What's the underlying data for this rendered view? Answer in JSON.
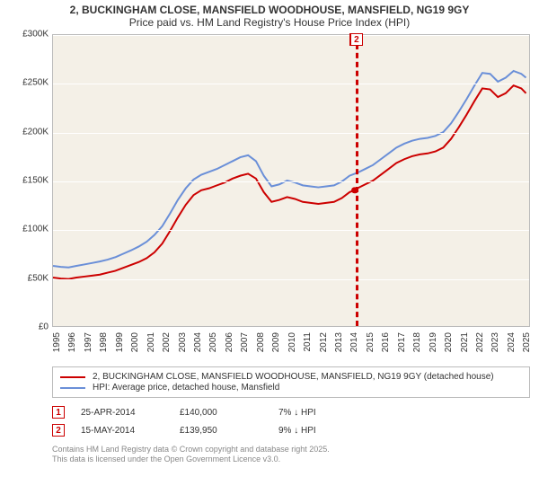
{
  "title": {
    "line1": "2, BUCKINGHAM CLOSE, MANSFIELD WOODHOUSE, MANSFIELD, NG19 9GY",
    "line2": "Price paid vs. HM Land Registry's House Price Index (HPI)"
  },
  "chart": {
    "type": "line",
    "background_color": "#f4f0e7",
    "grid_color": "#ffffff",
    "border_color": "#bbbbbb",
    "ylim": [
      0,
      300000
    ],
    "ytick_step": 50000,
    "y_ticks": [
      "£0",
      "£50K",
      "£100K",
      "£150K",
      "£200K",
      "£250K",
      "£300K"
    ],
    "xlim": [
      1995,
      2025.5
    ],
    "x_years": [
      1995,
      1996,
      1997,
      1998,
      1999,
      2000,
      2001,
      2002,
      2003,
      2004,
      2005,
      2006,
      2007,
      2008,
      2009,
      2010,
      2011,
      2012,
      2013,
      2014,
      2015,
      2016,
      2017,
      2018,
      2019,
      2020,
      2021,
      2022,
      2023,
      2024,
      2025
    ],
    "series": [
      {
        "name": "property",
        "label": "2, BUCKINGHAM CLOSE, MANSFIELD WOODHOUSE, MANSFIELD, NG19 9GY (detached house)",
        "color": "#cc0000",
        "line_width": 2,
        "points": [
          [
            1995.0,
            50000
          ],
          [
            1995.5,
            49000
          ],
          [
            1996.0,
            48500
          ],
          [
            1996.5,
            50000
          ],
          [
            1997.0,
            51000
          ],
          [
            1997.5,
            52000
          ],
          [
            1998.0,
            53000
          ],
          [
            1998.5,
            55000
          ],
          [
            1999.0,
            57000
          ],
          [
            1999.5,
            60000
          ],
          [
            2000.0,
            63000
          ],
          [
            2000.5,
            66000
          ],
          [
            2001.0,
            70000
          ],
          [
            2001.5,
            76000
          ],
          [
            2002.0,
            85000
          ],
          [
            2002.5,
            98000
          ],
          [
            2003.0,
            112000
          ],
          [
            2003.5,
            125000
          ],
          [
            2004.0,
            135000
          ],
          [
            2004.5,
            140000
          ],
          [
            2005.0,
            142000
          ],
          [
            2005.5,
            145000
          ],
          [
            2006.0,
            148000
          ],
          [
            2006.5,
            152000
          ],
          [
            2007.0,
            155000
          ],
          [
            2007.5,
            157000
          ],
          [
            2008.0,
            152000
          ],
          [
            2008.5,
            138000
          ],
          [
            2009.0,
            128000
          ],
          [
            2009.5,
            130000
          ],
          [
            2010.0,
            133000
          ],
          [
            2010.5,
            131000
          ],
          [
            2011.0,
            128000
          ],
          [
            2011.5,
            127000
          ],
          [
            2012.0,
            126000
          ],
          [
            2012.5,
            127000
          ],
          [
            2013.0,
            128000
          ],
          [
            2013.5,
            132000
          ],
          [
            2014.0,
            138000
          ],
          [
            2014.3,
            140000
          ],
          [
            2014.5,
            142000
          ],
          [
            2015.0,
            146000
          ],
          [
            2015.5,
            150000
          ],
          [
            2016.0,
            156000
          ],
          [
            2016.5,
            162000
          ],
          [
            2017.0,
            168000
          ],
          [
            2017.5,
            172000
          ],
          [
            2018.0,
            175000
          ],
          [
            2018.5,
            177000
          ],
          [
            2019.0,
            178000
          ],
          [
            2019.5,
            180000
          ],
          [
            2020.0,
            184000
          ],
          [
            2020.5,
            193000
          ],
          [
            2021.0,
            205000
          ],
          [
            2021.5,
            218000
          ],
          [
            2022.0,
            232000
          ],
          [
            2022.5,
            245000
          ],
          [
            2023.0,
            244000
          ],
          [
            2023.5,
            236000
          ],
          [
            2024.0,
            240000
          ],
          [
            2024.5,
            248000
          ],
          [
            2025.0,
            245000
          ],
          [
            2025.3,
            240000
          ]
        ]
      },
      {
        "name": "hpi",
        "label": "HPI: Average price, detached house, Mansfield",
        "color": "#6a8fd8",
        "line_width": 2,
        "points": [
          [
            1995.0,
            62000
          ],
          [
            1995.5,
            61000
          ],
          [
            1996.0,
            60500
          ],
          [
            1996.5,
            62000
          ],
          [
            1997.0,
            63500
          ],
          [
            1997.5,
            65000
          ],
          [
            1998.0,
            66500
          ],
          [
            1998.5,
            68500
          ],
          [
            1999.0,
            71000
          ],
          [
            1999.5,
            74500
          ],
          [
            2000.0,
            78000
          ],
          [
            2000.5,
            82000
          ],
          [
            2001.0,
            87000
          ],
          [
            2001.5,
            94000
          ],
          [
            2002.0,
            103000
          ],
          [
            2002.5,
            116000
          ],
          [
            2003.0,
            130000
          ],
          [
            2003.5,
            142000
          ],
          [
            2004.0,
            151000
          ],
          [
            2004.5,
            156000
          ],
          [
            2005.0,
            159000
          ],
          [
            2005.5,
            162000
          ],
          [
            2006.0,
            166000
          ],
          [
            2006.5,
            170000
          ],
          [
            2007.0,
            174000
          ],
          [
            2007.5,
            176000
          ],
          [
            2008.0,
            170000
          ],
          [
            2008.5,
            155000
          ],
          [
            2009.0,
            144000
          ],
          [
            2009.5,
            146000
          ],
          [
            2010.0,
            150000
          ],
          [
            2010.5,
            148000
          ],
          [
            2011.0,
            145000
          ],
          [
            2011.5,
            144000
          ],
          [
            2012.0,
            143000
          ],
          [
            2012.5,
            144000
          ],
          [
            2013.0,
            145000
          ],
          [
            2013.5,
            149000
          ],
          [
            2014.0,
            155000
          ],
          [
            2014.5,
            158000
          ],
          [
            2015.0,
            162000
          ],
          [
            2015.5,
            166000
          ],
          [
            2016.0,
            172000
          ],
          [
            2016.5,
            178000
          ],
          [
            2017.0,
            184000
          ],
          [
            2017.5,
            188000
          ],
          [
            2018.0,
            191000
          ],
          [
            2018.5,
            193000
          ],
          [
            2019.0,
            194000
          ],
          [
            2019.5,
            196000
          ],
          [
            2020.0,
            200000
          ],
          [
            2020.5,
            209000
          ],
          [
            2021.0,
            221000
          ],
          [
            2021.5,
            234000
          ],
          [
            2022.0,
            248000
          ],
          [
            2022.5,
            261000
          ],
          [
            2023.0,
            260000
          ],
          [
            2023.5,
            252000
          ],
          [
            2024.0,
            256000
          ],
          [
            2024.5,
            263000
          ],
          [
            2025.0,
            260000
          ],
          [
            2025.3,
            256000
          ]
        ]
      }
    ],
    "markers": [
      {
        "id": "1",
        "year": 2014.31,
        "value": 140000,
        "color": "#cc0000"
      },
      {
        "id": "2",
        "year": 2014.37,
        "value": 139950,
        "color": "#cc0000"
      }
    ]
  },
  "legend": {
    "rows": [
      {
        "color": "#cc0000",
        "label": "2, BUCKINGHAM CLOSE, MANSFIELD WOODHOUSE, MANSFIELD, NG19 9GY (detached house)"
      },
      {
        "color": "#6a8fd8",
        "label": "HPI: Average price, detached house, Mansfield"
      }
    ]
  },
  "sales": [
    {
      "id": "1",
      "color": "#cc0000",
      "date": "25-APR-2014",
      "price": "£140,000",
      "pct": "7% ↓ HPI"
    },
    {
      "id": "2",
      "color": "#cc0000",
      "date": "15-MAY-2014",
      "price": "£139,950",
      "pct": "9% ↓ HPI"
    }
  ],
  "attribution": {
    "line1": "Contains HM Land Registry data © Crown copyright and database right 2025.",
    "line2": "This data is licensed under the Open Government Licence v3.0."
  }
}
